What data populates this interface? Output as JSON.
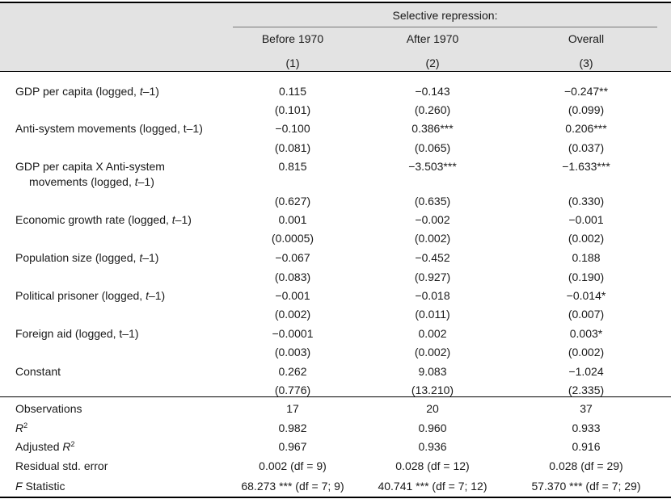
{
  "header": {
    "group_label": "Selective repression:",
    "columns": [
      {
        "name": "Before 1970",
        "num": "(1)"
      },
      {
        "name": "After 1970",
        "num": "(2)"
      },
      {
        "name": "Overall",
        "num": "(3)"
      }
    ]
  },
  "rows": [
    {
      "label": "GDP per capita (logged, ",
      "label_italic": "t",
      "label_end": "–1)",
      "coef": [
        "0.115",
        "−0.143",
        "−0.247**"
      ],
      "se": [
        "(0.101)",
        "(0.260)",
        "(0.099)"
      ]
    },
    {
      "label": "Anti-system movements (logged, t–1)",
      "coef": [
        "−0.100",
        "0.386***",
        "0.206***"
      ],
      "se": [
        "(0.081)",
        "(0.065)",
        "(0.037)"
      ]
    },
    {
      "label": "GDP per capita X Anti-system",
      "label_line2": "movements (logged, ",
      "label_italic": "t",
      "label_end": "–1)",
      "coef": [
        "0.815",
        "−3.503***",
        "−1.633***"
      ],
      "se": [
        "(0.627)",
        "(0.635)",
        "(0.330)"
      ]
    },
    {
      "label": "Economic growth rate (logged, ",
      "label_italic": "t",
      "label_end": "–1)",
      "coef": [
        "0.001",
        "−0.002",
        "−0.001"
      ],
      "se": [
        "(0.0005)",
        "(0.002)",
        "(0.002)"
      ]
    },
    {
      "label": "Population size (logged, ",
      "label_italic": "t",
      "label_end": "–1)",
      "coef": [
        "−0.067",
        "−0.452",
        "0.188"
      ],
      "se": [
        "(0.083)",
        "(0.927)",
        "(0.190)"
      ]
    },
    {
      "label": "Political prisoner (logged, ",
      "label_italic": "t",
      "label_end": "–1)",
      "coef": [
        "−0.001",
        "−0.018",
        "−0.014*"
      ],
      "se": [
        "(0.002)",
        "(0.011)",
        "(0.007)"
      ]
    },
    {
      "label": "Foreign aid (logged, t–1)",
      "coef": [
        "−0.0001",
        "0.002",
        "0.003*"
      ],
      "se": [
        "(0.003)",
        "(0.002)",
        "(0.002)"
      ]
    },
    {
      "label": "Constant",
      "coef": [
        "0.262",
        "9.083",
        "−1.024"
      ],
      "se": [
        "(0.776)",
        "(13.210)",
        "(2.335)"
      ]
    }
  ],
  "stats": [
    {
      "label": "Observations",
      "values": [
        "17",
        "20",
        "37"
      ]
    },
    {
      "label_italic": "R",
      "label_sup": "2",
      "values": [
        "0.982",
        "0.960",
        "0.933"
      ]
    },
    {
      "label": "Adjusted ",
      "label_italic": "R",
      "label_sup": "2",
      "values": [
        "0.967",
        "0.936",
        "0.916"
      ]
    },
    {
      "label": "Residual std. error",
      "values": [
        "0.002 (df = 9)",
        "0.028 (df = 12)",
        "0.028 (df = 29)"
      ]
    },
    {
      "label_italic": "F",
      "label": " Statistic",
      "values": [
        "68.273 *** (df = 7; 9)",
        "40.741 *** (df = 7; 12)",
        "57.370 *** (df = 7; 29)"
      ]
    }
  ]
}
